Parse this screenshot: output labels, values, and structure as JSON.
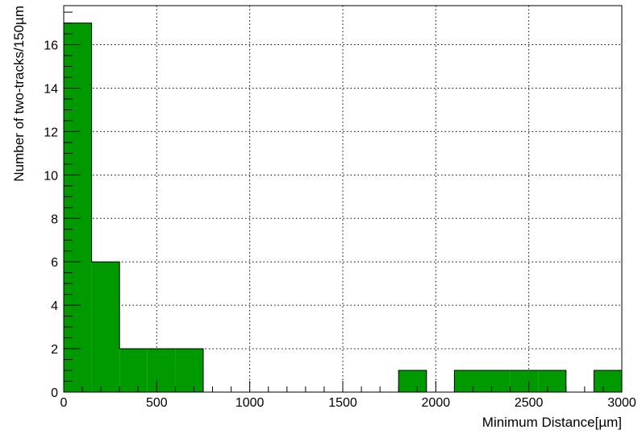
{
  "chart_data": {
    "type": "bar",
    "title": "",
    "xlabel": "Minimum Distance[µm]",
    "ylabel": "Number of two-tracks/150µm",
    "xlim": [
      0,
      3000
    ],
    "ylim": [
      0,
      17.8
    ],
    "bin_width": 150,
    "bins": [
      {
        "x0": 0,
        "x1": 150,
        "count": 17
      },
      {
        "x0": 150,
        "x1": 300,
        "count": 6
      },
      {
        "x0": 300,
        "x1": 450,
        "count": 2
      },
      {
        "x0": 450,
        "x1": 600,
        "count": 2
      },
      {
        "x0": 600,
        "x1": 750,
        "count": 2
      },
      {
        "x0": 1800,
        "x1": 1950,
        "count": 1
      },
      {
        "x0": 2100,
        "x1": 2250,
        "count": 1
      },
      {
        "x0": 2250,
        "x1": 2400,
        "count": 1
      },
      {
        "x0": 2400,
        "x1": 2550,
        "count": 1
      },
      {
        "x0": 2550,
        "x1": 2700,
        "count": 1
      },
      {
        "x0": 2850,
        "x1": 3000,
        "count": 1
      }
    ],
    "x_ticks": [
      "0",
      "500",
      "1000",
      "1500",
      "2000",
      "2500",
      "3000"
    ],
    "y_ticks": [
      "0",
      "2",
      "4",
      "6",
      "8",
      "10",
      "12",
      "14",
      "16"
    ],
    "grid": true,
    "fill_color": "#009900",
    "edge_color": "#000000"
  }
}
